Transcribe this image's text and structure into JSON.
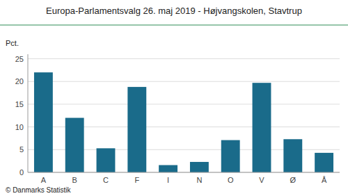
{
  "chart_data": {
    "type": "bar",
    "title": "Europa-Parlamentsvalg 26. maj 2019 - Højvangskolen, Stavtrup",
    "ylabel": "Pct.",
    "footer": "© Danmarks Statistik",
    "categories": [
      "A",
      "B",
      "C",
      "F",
      "I",
      "N",
      "O",
      "V",
      "Ø",
      "Å"
    ],
    "values": [
      22.0,
      12.0,
      5.3,
      18.8,
      1.6,
      2.3,
      7.1,
      19.7,
      7.3,
      4.3
    ],
    "color": "#1a6b8a",
    "ylim": [
      0,
      26
    ],
    "yticks": [
      0,
      5,
      10,
      15,
      20,
      25
    ],
    "grid": true
  }
}
